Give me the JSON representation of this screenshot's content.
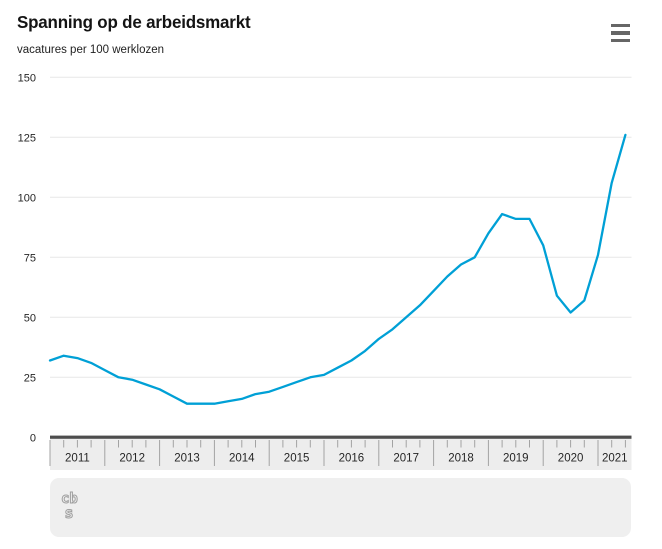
{
  "header": {
    "title": "Spanning op de arbeidsmarkt",
    "subtitle": "vacatures per 100 werklozen"
  },
  "menu": {
    "tooltip": "menu"
  },
  "footer": {
    "logo_top": "cb",
    "logo_bottom": "s"
  },
  "chart_data": {
    "type": "line",
    "title": "Spanning op de arbeidsmarkt",
    "subtitle": "vacatures per 100 werklozen",
    "xlabel": "",
    "ylabel": "vacatures per 100 werklozen",
    "ylim": [
      0,
      150
    ],
    "yticks": [
      0,
      25,
      50,
      75,
      100,
      125,
      150
    ],
    "grid": true,
    "legend": false,
    "line_color": "#00a0d6",
    "year_labels": [
      "2011",
      "2012",
      "2013",
      "2014",
      "2015",
      "2016",
      "2017",
      "2018",
      "2019",
      "2020",
      "2021"
    ],
    "x": [
      "2011 Q1",
      "2011 Q2",
      "2011 Q3",
      "2011 Q4",
      "2012 Q1",
      "2012 Q2",
      "2012 Q3",
      "2012 Q4",
      "2013 Q1",
      "2013 Q2",
      "2013 Q3",
      "2013 Q4",
      "2014 Q1",
      "2014 Q2",
      "2014 Q3",
      "2014 Q4",
      "2015 Q1",
      "2015 Q2",
      "2015 Q3",
      "2015 Q4",
      "2016 Q1",
      "2016 Q2",
      "2016 Q3",
      "2016 Q4",
      "2017 Q1",
      "2017 Q2",
      "2017 Q3",
      "2017 Q4",
      "2018 Q1",
      "2018 Q2",
      "2018 Q3",
      "2018 Q4",
      "2019 Q1",
      "2019 Q2",
      "2019 Q3",
      "2019 Q4",
      "2020 Q1",
      "2020 Q2",
      "2020 Q3",
      "2020 Q4",
      "2021 Q1",
      "2021 Q2",
      "2021 Q3"
    ],
    "series": [
      {
        "name": "vacatures per 100 werklozen",
        "values": [
          32,
          34,
          33,
          31,
          28,
          25,
          24,
          22,
          20,
          17,
          14,
          14,
          14,
          15,
          16,
          18,
          19,
          21,
          23,
          25,
          26,
          29,
          32,
          36,
          41,
          45,
          50,
          55,
          61,
          67,
          72,
          75,
          85,
          93,
          91,
          91,
          80,
          59,
          52,
          57,
          76,
          106,
          126
        ]
      }
    ],
    "colors": {
      "gridline": "#e7e7e7",
      "zero_axis": "#4d4d4d",
      "axis_band": "#ededed",
      "tick": "#a3a3a3",
      "tick_label": "#262626"
    }
  }
}
